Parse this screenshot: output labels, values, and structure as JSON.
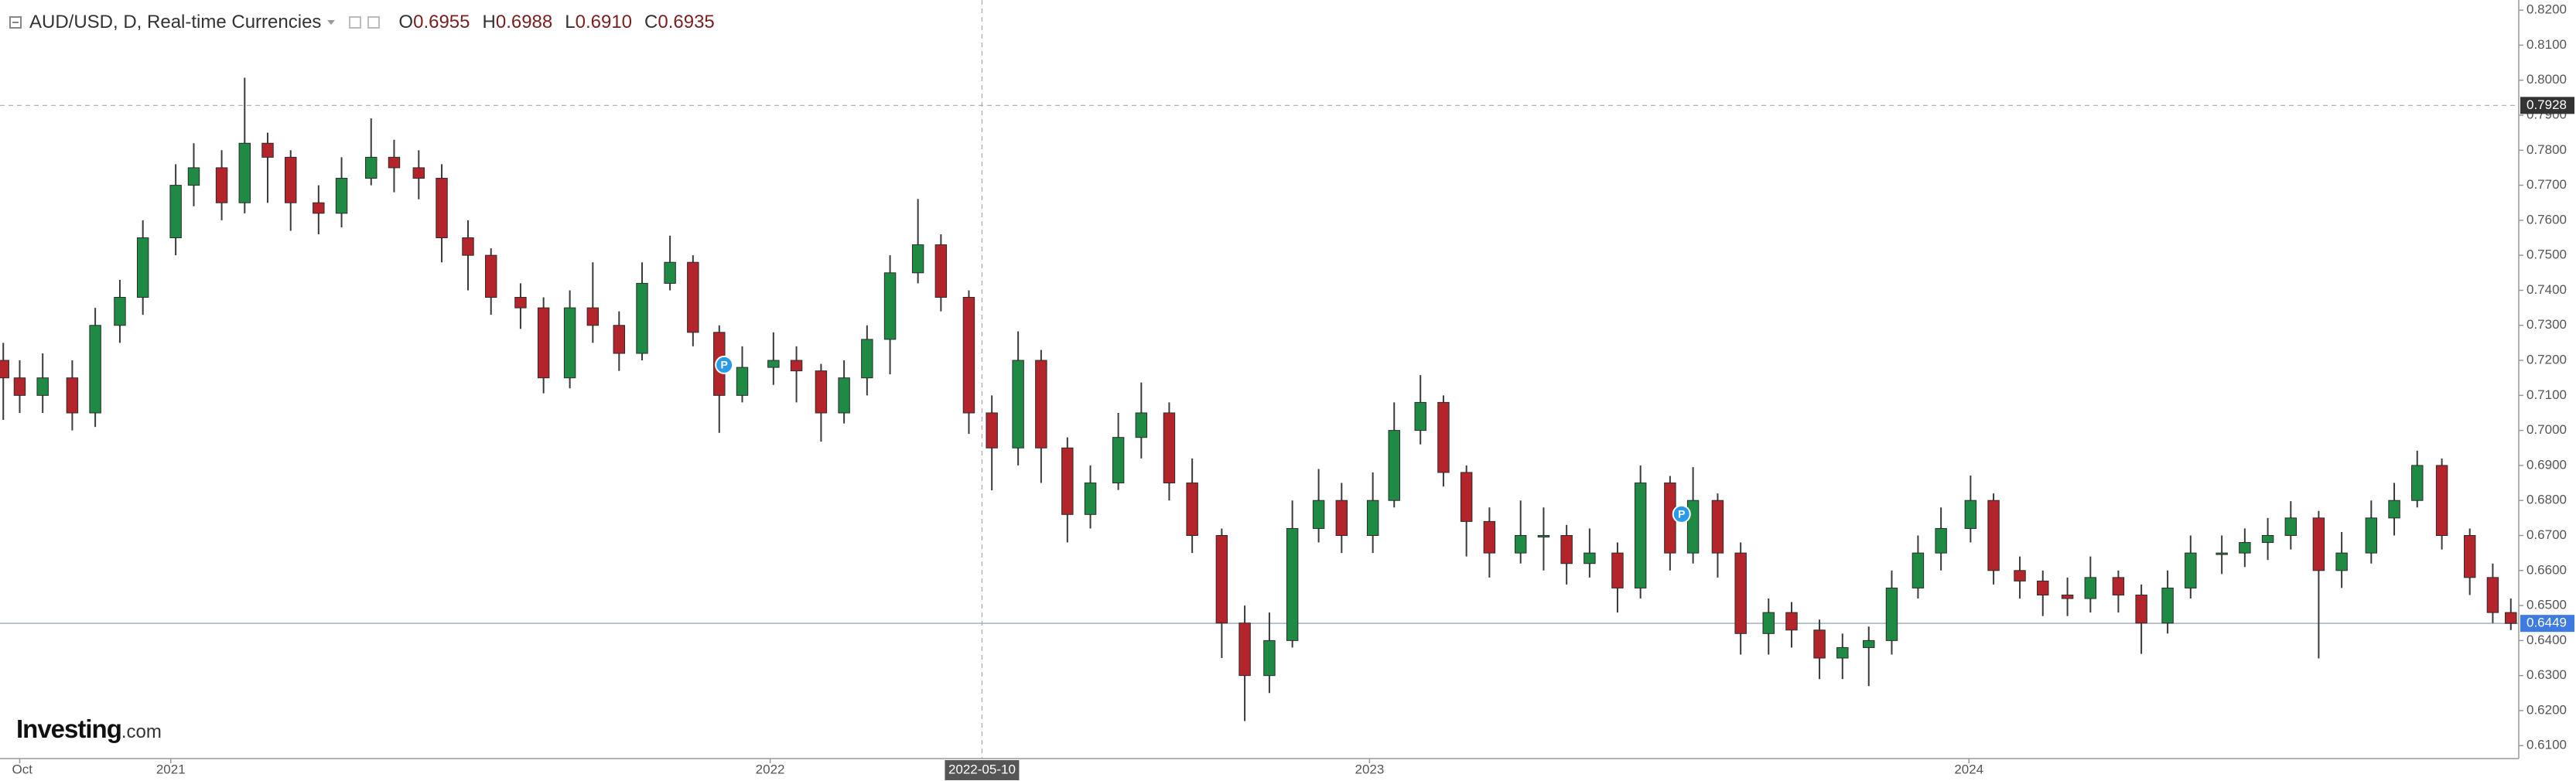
{
  "chart_data": {
    "type": "candlestick",
    "title": "AUD/USD, D, Real-time Currencies",
    "ohlc_legend": [
      {
        "key": "O",
        "value": "0.6955"
      },
      {
        "key": "H",
        "value": "0.6988"
      },
      {
        "key": "L",
        "value": "0.6910"
      },
      {
        "key": "C",
        "value": "0.6935"
      }
    ],
    "logo_name": "Investing",
    "logo_suffix": ".com",
    "up_color": "#1f8a44",
    "down_color": "#b3252a",
    "grid": false,
    "xlim": [
      "2020-09-19",
      "2024-11-28"
    ],
    "xticks": [
      {
        "value": "2020-10-01",
        "label": "Oct"
      },
      {
        "value": "2021-01-01",
        "label": "2021"
      },
      {
        "value": "2022-01-01",
        "label": "2022"
      },
      {
        "value": "2023-01-01",
        "label": "2023"
      },
      {
        "value": "2024-01-01",
        "label": "2024"
      }
    ],
    "ylim": [
      0.6063,
      0.8229
    ],
    "yticks": [
      {
        "value": 0.61,
        "label": "0.6100"
      },
      {
        "value": 0.62,
        "label": "0.6200"
      },
      {
        "value": 0.63,
        "label": "0.6300"
      },
      {
        "value": 0.64,
        "label": "0.6400"
      },
      {
        "value": 0.65,
        "label": "0.6500"
      },
      {
        "value": 0.66,
        "label": "0.6600"
      },
      {
        "value": 0.67,
        "label": "0.6700"
      },
      {
        "value": 0.68,
        "label": "0.6800"
      },
      {
        "value": 0.69,
        "label": "0.6900"
      },
      {
        "value": 0.7,
        "label": "0.7000"
      },
      {
        "value": 0.71,
        "label": "0.7100"
      },
      {
        "value": 0.72,
        "label": "0.7200"
      },
      {
        "value": 0.73,
        "label": "0.7300"
      },
      {
        "value": 0.74,
        "label": "0.7400"
      },
      {
        "value": 0.75,
        "label": "0.7500"
      },
      {
        "value": 0.76,
        "label": "0.7600"
      },
      {
        "value": 0.77,
        "label": "0.7700"
      },
      {
        "value": 0.78,
        "label": "0.7800"
      },
      {
        "value": 0.79,
        "label": "0.7900"
      },
      {
        "value": 0.8,
        "label": "0.8000"
      },
      {
        "value": 0.81,
        "label": "0.8100"
      },
      {
        "value": 0.82,
        "label": "0.8200"
      }
    ],
    "crosshair": {
      "x": "2022-05-10",
      "y": 0.7928
    },
    "last_price": 0.6449,
    "markers": [
      {
        "label": "P",
        "x": "2021-12-04",
        "y": 0.7187
      },
      {
        "label": "P",
        "x": "2023-07-10",
        "y": 0.6761
      }
    ],
    "x": [
      "2020-09-21",
      "2020-10-01",
      "2020-10-15",
      "2020-11-02",
      "2020-11-16",
      "2020-12-01",
      "2020-12-15",
      "2021-01-04",
      "2021-01-15",
      "2021-02-01",
      "2021-02-15",
      "2021-03-01",
      "2021-03-15",
      "2021-04-01",
      "2021-04-15",
      "2021-05-03",
      "2021-05-17",
      "2021-06-01",
      "2021-06-15",
      "2021-07-01",
      "2021-07-15",
      "2021-08-02",
      "2021-08-16",
      "2021-09-01",
      "2021-09-15",
      "2021-10-01",
      "2021-10-15",
      "2021-11-01",
      "2021-11-15",
      "2021-12-01",
      "2021-12-15",
      "2022-01-03",
      "2022-01-17",
      "2022-02-01",
      "2022-02-15",
      "2022-03-01",
      "2022-03-15",
      "2022-04-01",
      "2022-04-15",
      "2022-05-02",
      "2022-05-16",
      "2022-06-01",
      "2022-06-15",
      "2022-07-01",
      "2022-07-15",
      "2022-08-01",
      "2022-08-15",
      "2022-09-01",
      "2022-09-15",
      "2022-10-03",
      "2022-10-17",
      "2022-11-01",
      "2022-11-15",
      "2022-12-01",
      "2022-12-15",
      "2023-01-03",
      "2023-01-16",
      "2023-02-01",
      "2023-02-15",
      "2023-03-01",
      "2023-03-15",
      "2023-04-03",
      "2023-04-17",
      "2023-05-01",
      "2023-05-15",
      "2023-06-01",
      "2023-06-15",
      "2023-07-03",
      "2023-07-17",
      "2023-08-01",
      "2023-08-15",
      "2023-09-01",
      "2023-09-15",
      "2023-10-02",
      "2023-10-16",
      "2023-11-01",
      "2023-11-15",
      "2023-12-01",
      "2023-12-15",
      "2024-01-02",
      "2024-01-16",
      "2024-02-01",
      "2024-02-15",
      "2024-03-01",
      "2024-03-15",
      "2024-04-01",
      "2024-04-15",
      "2024-05-01",
      "2024-05-15",
      "2024-06-03",
      "2024-06-17",
      "2024-07-01",
      "2024-07-15",
      "2024-08-01",
      "2024-08-15",
      "2024-09-02",
      "2024-09-16",
      "2024-09-30",
      "2024-10-15",
      "2024-11-01",
      "2024-11-15",
      "2024-11-26"
    ],
    "open": [
      0.72,
      0.715,
      0.71,
      0.715,
      0.705,
      0.73,
      0.738,
      0.755,
      0.77,
      0.775,
      0.765,
      0.782,
      0.778,
      0.765,
      0.762,
      0.772,
      0.778,
      0.775,
      0.772,
      0.755,
      0.75,
      0.738,
      0.735,
      0.715,
      0.735,
      0.73,
      0.722,
      0.742,
      0.748,
      0.728,
      0.71,
      0.718,
      0.72,
      0.717,
      0.705,
      0.715,
      0.726,
      0.745,
      0.753,
      0.738,
      0.705,
      0.695,
      0.72,
      0.695,
      0.676,
      0.685,
      0.698,
      0.705,
      0.685,
      0.67,
      0.645,
      0.63,
      0.64,
      0.672,
      0.68,
      0.67,
      0.68,
      0.7,
      0.708,
      0.688,
      0.674,
      0.665,
      0.67,
      0.67,
      0.662,
      0.665,
      0.655,
      0.685,
      0.665,
      0.68,
      0.665,
      0.642,
      0.648,
      0.643,
      0.635,
      0.638,
      0.64,
      0.655,
      0.665,
      0.672,
      0.68,
      0.66,
      0.657,
      0.653,
      0.652,
      0.658,
      0.653,
      0.645,
      0.655,
      0.665,
      0.665,
      0.668,
      0.67,
      0.675,
      0.66,
      0.665,
      0.675,
      0.68,
      0.69,
      0.67,
      0.658,
      0.648
    ],
    "high": [
      0.725,
      0.72,
      0.722,
      0.72,
      0.735,
      0.743,
      0.76,
      0.776,
      0.782,
      0.78,
      0.8007,
      0.785,
      0.78,
      0.77,
      0.778,
      0.7891,
      0.783,
      0.78,
      0.776,
      0.76,
      0.752,
      0.742,
      0.738,
      0.74,
      0.748,
      0.734,
      0.748,
      0.7556,
      0.75,
      0.73,
      0.724,
      0.728,
      0.724,
      0.719,
      0.72,
      0.73,
      0.75,
      0.7661,
      0.756,
      0.74,
      0.71,
      0.7283,
      0.723,
      0.698,
      0.69,
      0.705,
      0.7137,
      0.708,
      0.692,
      0.672,
      0.65,
      0.648,
      0.68,
      0.689,
      0.685,
      0.688,
      0.708,
      0.7158,
      0.71,
      0.69,
      0.678,
      0.68,
      0.678,
      0.673,
      0.672,
      0.668,
      0.69,
      0.687,
      0.6895,
      0.682,
      0.668,
      0.652,
      0.651,
      0.646,
      0.642,
      0.644,
      0.66,
      0.67,
      0.678,
      0.6871,
      0.682,
      0.664,
      0.66,
      0.658,
      0.664,
      0.66,
      0.656,
      0.66,
      0.67,
      0.67,
      0.672,
      0.675,
      0.6798,
      0.677,
      0.671,
      0.68,
      0.685,
      0.6942,
      0.692,
      0.672,
      0.662,
      0.652
    ],
    "low": [
      0.703,
      0.705,
      0.705,
      0.7,
      0.701,
      0.725,
      0.733,
      0.75,
      0.764,
      0.76,
      0.762,
      0.765,
      0.757,
      0.756,
      0.758,
      0.77,
      0.768,
      0.766,
      0.748,
      0.74,
      0.733,
      0.729,
      0.7106,
      0.712,
      0.725,
      0.717,
      0.72,
      0.74,
      0.724,
      0.6993,
      0.708,
      0.713,
      0.708,
      0.6968,
      0.702,
      0.71,
      0.716,
      0.742,
      0.734,
      0.699,
      0.6829,
      0.69,
      0.685,
      0.668,
      0.672,
      0.683,
      0.692,
      0.68,
      0.665,
      0.635,
      0.617,
      0.625,
      0.638,
      0.668,
      0.665,
      0.665,
      0.678,
      0.696,
      0.684,
      0.664,
      0.658,
      0.662,
      0.66,
      0.656,
      0.658,
      0.648,
      0.652,
      0.66,
      0.662,
      0.658,
      0.636,
      0.636,
      0.638,
      0.629,
      0.629,
      0.627,
      0.636,
      0.652,
      0.66,
      0.668,
      0.656,
      0.652,
      0.647,
      0.647,
      0.648,
      0.648,
      0.6362,
      0.642,
      0.652,
      0.659,
      0.661,
      0.663,
      0.666,
      0.6349,
      0.655,
      0.662,
      0.67,
      0.678,
      0.666,
      0.653,
      0.645,
      0.643
    ],
    "close": [
      0.715,
      0.71,
      0.715,
      0.705,
      0.73,
      0.738,
      0.755,
      0.77,
      0.775,
      0.765,
      0.782,
      0.778,
      0.765,
      0.762,
      0.772,
      0.778,
      0.775,
      0.772,
      0.755,
      0.75,
      0.738,
      0.735,
      0.715,
      0.735,
      0.73,
      0.722,
      0.742,
      0.748,
      0.728,
      0.71,
      0.718,
      0.72,
      0.717,
      0.705,
      0.715,
      0.726,
      0.745,
      0.753,
      0.738,
      0.705,
      0.695,
      0.72,
      0.695,
      0.676,
      0.685,
      0.698,
      0.705,
      0.685,
      0.67,
      0.645,
      0.63,
      0.64,
      0.672,
      0.68,
      0.67,
      0.68,
      0.7,
      0.708,
      0.688,
      0.674,
      0.665,
      0.67,
      0.67,
      0.662,
      0.665,
      0.655,
      0.685,
      0.665,
      0.68,
      0.665,
      0.642,
      0.648,
      0.643,
      0.635,
      0.638,
      0.64,
      0.655,
      0.665,
      0.672,
      0.68,
      0.66,
      0.657,
      0.653,
      0.652,
      0.658,
      0.653,
      0.645,
      0.655,
      0.665,
      0.665,
      0.668,
      0.67,
      0.675,
      0.66,
      0.665,
      0.675,
      0.68,
      0.69,
      0.67,
      0.658,
      0.648,
      0.6449
    ]
  }
}
